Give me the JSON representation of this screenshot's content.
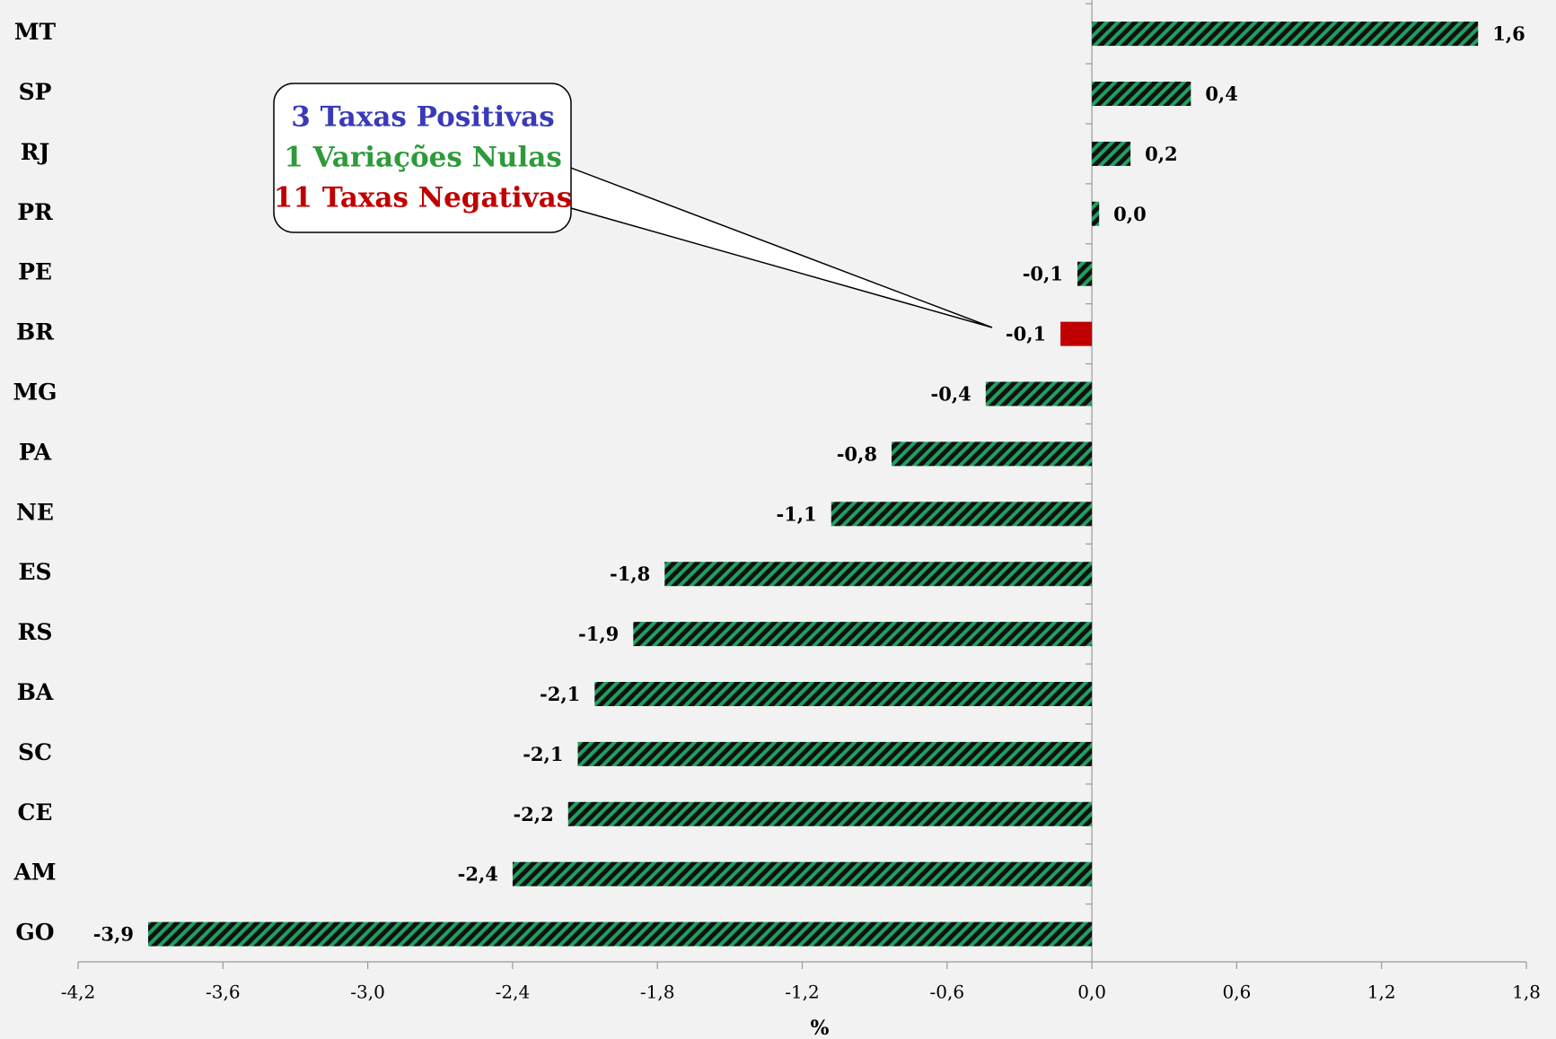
{
  "chart_data": {
    "type": "bar",
    "orientation": "horizontal",
    "x_label": "%",
    "categories": [
      "MT",
      "SP",
      "RJ",
      "PR",
      "PE",
      "BR",
      "MG",
      "PA",
      "NE",
      "ES",
      "RS",
      "BA",
      "SC",
      "CE",
      "AM",
      "GO"
    ],
    "values": [
      1.6,
      0.41,
      0.16,
      0.03,
      -0.06,
      -0.13,
      -0.44,
      -0.83,
      -1.08,
      -1.77,
      -1.9,
      -2.06,
      -2.13,
      -2.17,
      -2.4,
      -3.91
    ],
    "value_labels": [
      "1,6",
      "0,4",
      "0,2",
      "0,0",
      "-0,1",
      "-0,1",
      "-0,4",
      "-0,8",
      "-1,1",
      "-1,8",
      "-1,9",
      "-2,1",
      "-2,1",
      "-2,2",
      "-2,4",
      "-3,9"
    ],
    "colors": [
      "#1fa060",
      "#1fa060",
      "#1fa060",
      "#1fa060",
      "#1fa060",
      "#c00000",
      "#1fa060",
      "#1fa060",
      "#1fa060",
      "#1fa060",
      "#1fa060",
      "#1fa060",
      "#1fa060",
      "#1fa060",
      "#1fa060",
      "#1fa060"
    ],
    "hatch": [
      true,
      true,
      true,
      true,
      true,
      false,
      true,
      true,
      true,
      true,
      true,
      true,
      true,
      true,
      true,
      true
    ],
    "xlim": [
      -4.2,
      1.8
    ],
    "xticks": [
      {
        "value": -4.2,
        "label": "-4,2"
      },
      {
        "value": -3.6,
        "label": "-3,6"
      },
      {
        "value": -3,
        "label": "-3,0"
      },
      {
        "value": -2.4,
        "label": "-2,4"
      },
      {
        "value": -1.8,
        "label": "-1,8"
      },
      {
        "value": -1.2,
        "label": "-1,2"
      },
      {
        "value": -0.6,
        "label": "-0,6"
      },
      {
        "value": 0,
        "label": "0,0"
      },
      {
        "value": 0.6,
        "label": "0,6"
      },
      {
        "value": 1.2,
        "label": "1,2"
      },
      {
        "value": 1.8,
        "label": "1,8"
      }
    ],
    "annotations": [
      {
        "text": "3 Taxas Positivas",
        "color": "#3a3ab8"
      },
      {
        "text": "1 Variações Nulas",
        "color": "#2e9a3a"
      },
      {
        "text": "11 Taxas Negativas",
        "color": "#c00000"
      }
    ]
  }
}
